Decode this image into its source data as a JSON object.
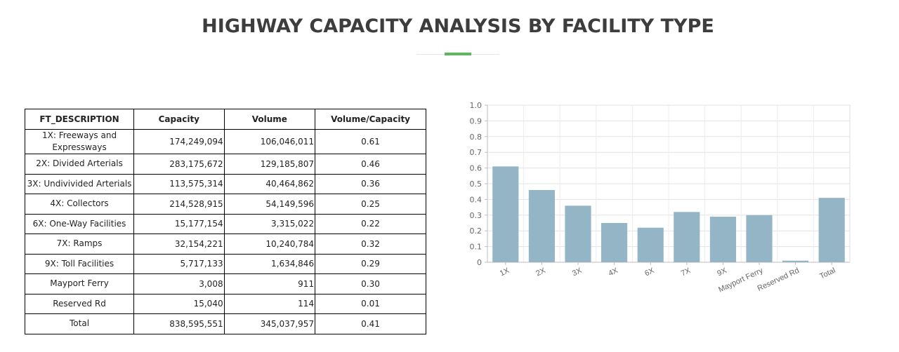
{
  "page": {
    "title": "HIGHWAY CAPACITY ANALYSIS BY FACILITY TYPE"
  },
  "table": {
    "headers": [
      "FT_DESCRIPTION",
      "Capacity",
      "Volume",
      "Volume/Capacity"
    ],
    "rows": [
      {
        "desc": "1X: Freeways and Expressways",
        "capacity": "174,249,094",
        "volume": "106,046,011",
        "vc": "0.61"
      },
      {
        "desc": "2X: Divided Arterials",
        "capacity": "283,175,672",
        "volume": "129,185,807",
        "vc": "0.46"
      },
      {
        "desc": "3X: Undivivided Arterials",
        "capacity": "113,575,314",
        "volume": "40,464,862",
        "vc": "0.36"
      },
      {
        "desc": "4X: Collectors",
        "capacity": "214,528,915",
        "volume": "54,149,596",
        "vc": "0.25"
      },
      {
        "desc": "6X: One-Way Facilities",
        "capacity": "15,177,154",
        "volume": "3,315,022",
        "vc": "0.22"
      },
      {
        "desc": "7X: Ramps",
        "capacity": "32,154,221",
        "volume": "10,240,784",
        "vc": "0.32"
      },
      {
        "desc": "9X: Toll Facilities",
        "capacity": "5,717,133",
        "volume": "1,634,846",
        "vc": "0.29"
      },
      {
        "desc": "Mayport Ferry",
        "capacity": "3,008",
        "volume": "911",
        "vc": "0.30"
      },
      {
        "desc": "Reserved Rd",
        "capacity": "15,040",
        "volume": "114",
        "vc": "0.01"
      },
      {
        "desc": "Total",
        "capacity": "838,595,551",
        "volume": "345,037,957",
        "vc": "0.41"
      }
    ]
  },
  "chart_data": {
    "type": "bar",
    "title": "",
    "xlabel": "",
    "ylabel": "",
    "categories": [
      "1X",
      "2X",
      "3X",
      "4X",
      "6X",
      "7X",
      "9X",
      "Mayport Ferry",
      "Reserved Rd",
      "Total"
    ],
    "values": [
      0.61,
      0.46,
      0.36,
      0.25,
      0.22,
      0.32,
      0.29,
      0.3,
      0.01,
      0.41
    ],
    "ylim": [
      0,
      1.0
    ],
    "yticks": [
      "0",
      "0.1",
      "0.2",
      "0.3",
      "0.4",
      "0.5",
      "0.6",
      "0.7",
      "0.8",
      "0.9",
      "1.0"
    ],
    "grid": true,
    "legend": "none",
    "bar_color": "#93b5c6"
  }
}
